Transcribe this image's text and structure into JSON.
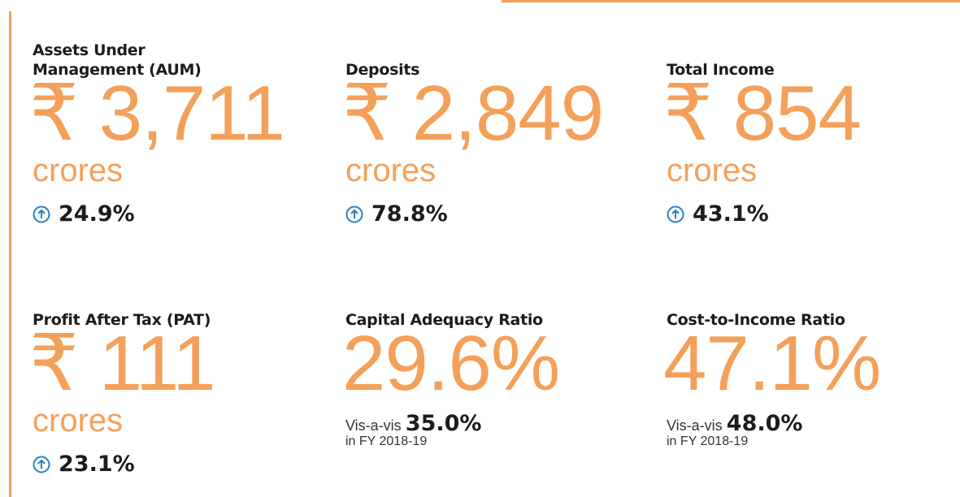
{
  "metrics": [
    {
      "label": "Assets Under Management (AUM)",
      "value": "₹ 3,711",
      "unit": "crores",
      "growth": "24.9%"
    },
    {
      "label": "Deposits",
      "value": "₹ 2,849",
      "unit": "crores",
      "growth": "78.8%"
    },
    {
      "label": "Total Income",
      "value": "₹ 854",
      "unit": "crores",
      "growth": "43.1%"
    },
    {
      "label": "Profit After Tax (PAT)",
      "value": "₹ 111",
      "unit": "crores",
      "growth": "23.1%"
    },
    {
      "label": "Capital Adequacy Ratio",
      "value": "29.6%",
      "comparison": {
        "prefix": "Vis-a-vis",
        "value": "35.0%",
        "suffix": "in FY 2018-19"
      }
    },
    {
      "label": "Cost-to-Income Ratio",
      "value": "47.1%",
      "comparison": {
        "prefix": "Vis-a-vis",
        "value": "48.0%",
        "suffix": "in FY 2018-19"
      }
    }
  ]
}
